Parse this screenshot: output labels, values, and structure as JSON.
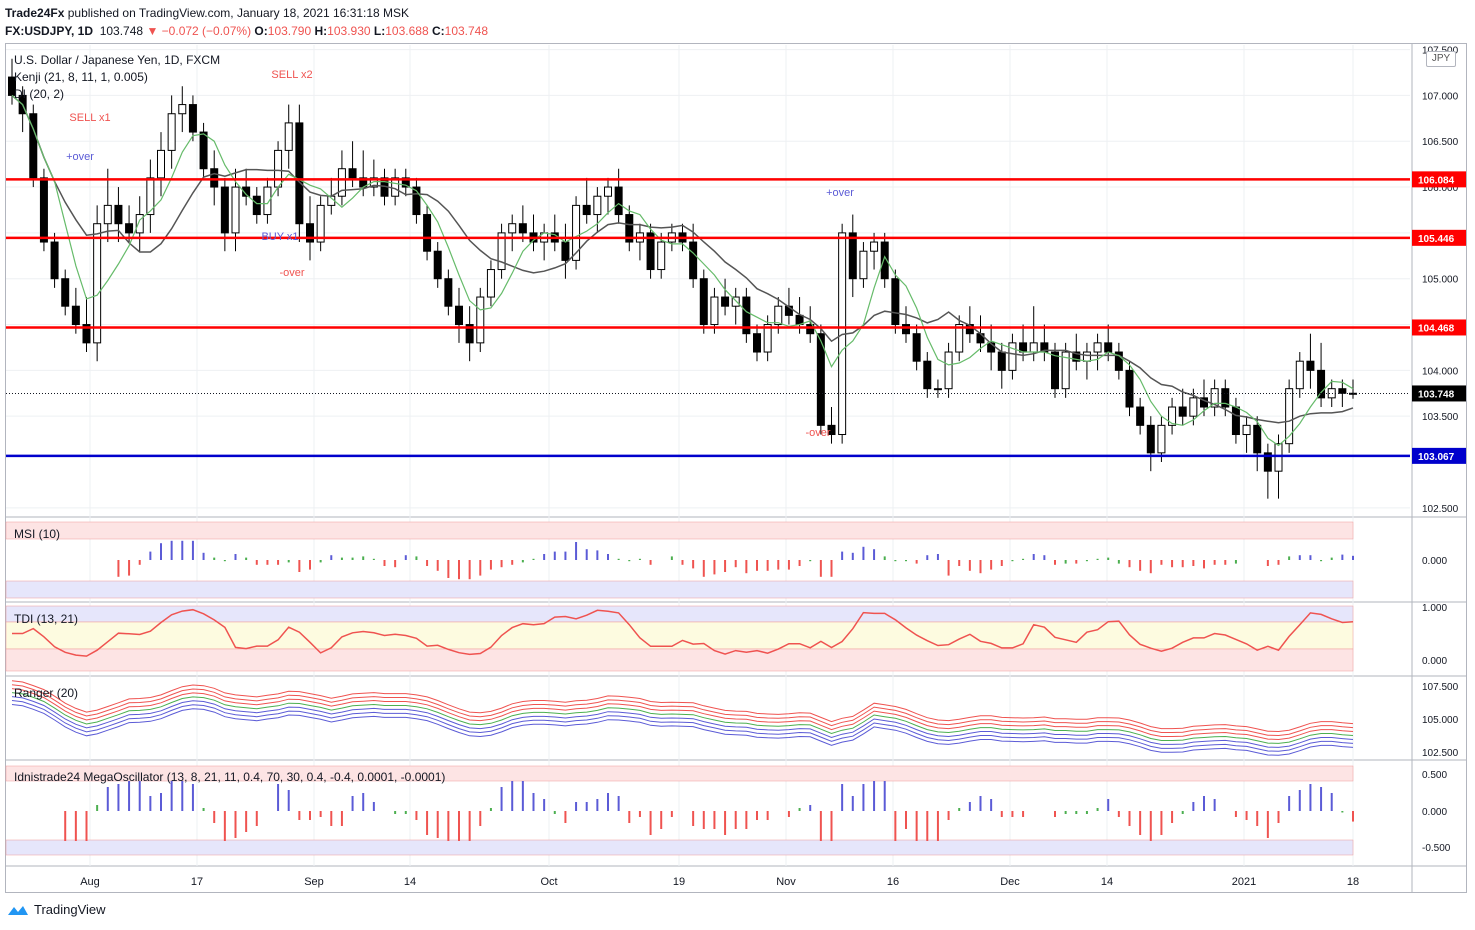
{
  "header": {
    "publisher": "Trade24Fx",
    "published_text": "published on TradingView.com, January 18, 2021 16:31:18 MSK",
    "symbol": "FX:USDJPY, 1D",
    "last": "103.748",
    "change": "−0.072 (−0.07%)",
    "o_label": "O:",
    "o": "103.790",
    "h_label": "H:",
    "h": "103.930",
    "l_label": "L:",
    "l": "103.688",
    "c_label": "C:",
    "c": "103.748"
  },
  "legend": {
    "instrument": "U.S. Dollar / Japanese Yen, 1D, FXCM",
    "kenji": "Kenji (21, 8, 11, 1, 0.005)",
    "di": "DI (20, 2)",
    "msi": "MSI (10)",
    "tdi": "TDI (13, 21)",
    "ranger": "Ranger (20)",
    "mega": "Idnistrade24 MegaOscillator (13, 8, 21, 11, 0.4, 70, 30, 0.4, -0.4, 0.0001, -0.0001)"
  },
  "currency_label": "JPY",
  "footer": {
    "brand": "TradingView"
  },
  "colors": {
    "up": "#ffffff",
    "down": "#000000",
    "level_red": "#ff0000",
    "level_blue": "#0000cc",
    "sell": "#ef5350",
    "buy": "#5b5bd6",
    "green": "#4caf50"
  },
  "chart_data": {
    "type": "candlestick",
    "x_ticks": [
      "Aug",
      "17",
      "Sep",
      "14",
      "Oct",
      "19",
      "Nov",
      "16",
      "Dec",
      "14",
      "2021",
      "18"
    ],
    "price_axis": [
      "107.500",
      "107.000",
      "106.500",
      "106.000",
      "105.500",
      "105.000",
      "104.500",
      "104.000",
      "103.500",
      "102.500"
    ],
    "ylim": [
      102.4,
      107.55
    ],
    "levels": [
      {
        "value": 106.084,
        "label": "106.084",
        "color": "red"
      },
      {
        "value": 105.446,
        "label": "105.446",
        "color": "red"
      },
      {
        "value": 104.468,
        "label": "104.468",
        "color": "red"
      },
      {
        "value": 103.067,
        "label": "103.067",
        "color": "blue"
      }
    ],
    "last_price": {
      "value": 103.748,
      "label": "103.748"
    },
    "ohlc": [
      [
        107.2,
        107.4,
        106.9,
        107.0
      ],
      [
        107.0,
        107.1,
        106.6,
        106.8
      ],
      [
        106.8,
        106.9,
        106.0,
        106.1
      ],
      [
        106.1,
        106.2,
        105.3,
        105.4
      ],
      [
        105.4,
        105.5,
        104.9,
        105.0
      ],
      [
        105.0,
        105.1,
        104.6,
        104.7
      ],
      [
        104.7,
        104.9,
        104.4,
        104.5
      ],
      [
        104.5,
        104.8,
        104.2,
        104.3
      ],
      [
        104.3,
        105.8,
        104.1,
        105.6
      ],
      [
        105.6,
        106.2,
        105.4,
        105.8
      ],
      [
        105.8,
        106.0,
        105.4,
        105.6
      ],
      [
        105.6,
        105.8,
        105.4,
        105.5
      ],
      [
        105.5,
        105.9,
        105.3,
        105.7
      ],
      [
        105.7,
        106.3,
        105.5,
        106.1
      ],
      [
        106.1,
        106.6,
        105.9,
        106.4
      ],
      [
        106.4,
        107.0,
        106.2,
        106.8
      ],
      [
        106.8,
        107.1,
        106.6,
        106.9
      ],
      [
        106.9,
        107.0,
        106.5,
        106.6
      ],
      [
        106.6,
        106.7,
        106.1,
        106.2
      ],
      [
        106.2,
        106.4,
        105.8,
        106.0
      ],
      [
        106.0,
        106.1,
        105.3,
        105.5
      ],
      [
        105.5,
        106.2,
        105.3,
        106.0
      ],
      [
        106.0,
        106.2,
        105.8,
        105.9
      ],
      [
        105.9,
        106.0,
        105.6,
        105.7
      ],
      [
        105.7,
        106.1,
        105.6,
        106.0
      ],
      [
        106.0,
        106.5,
        105.9,
        106.4
      ],
      [
        106.4,
        106.9,
        106.2,
        106.7
      ],
      [
        106.7,
        106.9,
        105.4,
        105.6
      ],
      [
        105.6,
        105.9,
        105.2,
        105.4
      ],
      [
        105.4,
        105.9,
        105.3,
        105.8
      ],
      [
        105.8,
        106.1,
        105.7,
        105.9
      ],
      [
        105.9,
        106.4,
        105.8,
        106.2
      ],
      [
        106.2,
        106.5,
        106.0,
        106.1
      ],
      [
        106.1,
        106.4,
        105.9,
        106.0
      ],
      [
        106.0,
        106.3,
        105.9,
        106.1
      ],
      [
        106.1,
        106.2,
        105.8,
        105.9
      ],
      [
        105.9,
        106.2,
        105.8,
        106.1
      ],
      [
        106.1,
        106.2,
        105.9,
        106.0
      ],
      [
        106.0,
        106.1,
        105.6,
        105.7
      ],
      [
        105.7,
        105.8,
        105.2,
        105.3
      ],
      [
        105.3,
        105.4,
        104.9,
        105.0
      ],
      [
        105.0,
        105.1,
        104.6,
        104.7
      ],
      [
        104.7,
        104.9,
        104.3,
        104.5
      ],
      [
        104.5,
        104.7,
        104.1,
        104.3
      ],
      [
        104.3,
        104.9,
        104.2,
        104.8
      ],
      [
        104.8,
        105.2,
        104.7,
        105.1
      ],
      [
        105.1,
        105.6,
        105.0,
        105.5
      ],
      [
        105.5,
        105.7,
        105.3,
        105.6
      ],
      [
        105.6,
        105.8,
        105.4,
        105.5
      ],
      [
        105.5,
        105.7,
        105.3,
        105.4
      ],
      [
        105.4,
        105.6,
        105.2,
        105.5
      ],
      [
        105.5,
        105.7,
        105.3,
        105.4
      ],
      [
        105.4,
        105.6,
        105.0,
        105.2
      ],
      [
        105.2,
        105.9,
        105.1,
        105.8
      ],
      [
        105.8,
        106.1,
        105.6,
        105.7
      ],
      [
        105.7,
        106.0,
        105.5,
        105.9
      ],
      [
        105.9,
        106.1,
        105.7,
        106.0
      ],
      [
        106.0,
        106.2,
        105.6,
        105.7
      ],
      [
        105.7,
        105.8,
        105.3,
        105.4
      ],
      [
        105.4,
        105.6,
        105.2,
        105.5
      ],
      [
        105.5,
        105.6,
        105.0,
        105.1
      ],
      [
        105.1,
        105.5,
        105.0,
        105.4
      ],
      [
        105.4,
        105.6,
        105.3,
        105.5
      ],
      [
        105.5,
        105.6,
        105.3,
        105.4
      ],
      [
        105.4,
        105.6,
        104.9,
        105.0
      ],
      [
        105.0,
        105.1,
        104.4,
        104.5
      ],
      [
        104.5,
        104.9,
        104.4,
        104.8
      ],
      [
        104.8,
        105.0,
        104.6,
        104.7
      ],
      [
        104.7,
        104.9,
        104.5,
        104.8
      ],
      [
        104.8,
        104.9,
        104.3,
        104.4
      ],
      [
        104.4,
        104.5,
        104.1,
        104.2
      ],
      [
        104.2,
        104.6,
        104.1,
        104.5
      ],
      [
        104.5,
        104.8,
        104.4,
        104.7
      ],
      [
        104.7,
        104.9,
        104.5,
        104.6
      ],
      [
        104.6,
        104.8,
        104.4,
        104.5
      ],
      [
        104.5,
        104.7,
        104.3,
        104.4
      ],
      [
        104.4,
        104.5,
        103.3,
        103.4
      ],
      [
        103.4,
        103.6,
        103.2,
        103.3
      ],
      [
        103.3,
        105.6,
        103.2,
        105.5
      ],
      [
        105.5,
        105.7,
        104.8,
        105.0
      ],
      [
        105.0,
        105.4,
        104.9,
        105.3
      ],
      [
        105.3,
        105.5,
        105.1,
        105.4
      ],
      [
        105.4,
        105.5,
        104.9,
        105.0
      ],
      [
        105.0,
        105.1,
        104.4,
        104.5
      ],
      [
        104.5,
        104.7,
        104.3,
        104.4
      ],
      [
        104.4,
        104.5,
        104.0,
        104.1
      ],
      [
        104.1,
        104.2,
        103.7,
        103.8
      ],
      [
        103.8,
        103.9,
        103.7,
        103.8
      ],
      [
        103.8,
        104.3,
        103.7,
        104.2
      ],
      [
        104.2,
        104.6,
        104.1,
        104.5
      ],
      [
        104.5,
        104.7,
        104.3,
        104.4
      ],
      [
        104.4,
        104.6,
        104.2,
        104.3
      ],
      [
        104.3,
        104.5,
        104.0,
        104.2
      ],
      [
        104.2,
        104.3,
        103.8,
        104.0
      ],
      [
        104.0,
        104.4,
        103.9,
        104.3
      ],
      [
        104.3,
        104.5,
        104.1,
        104.2
      ],
      [
        104.2,
        104.7,
        104.1,
        104.3
      ],
      [
        104.3,
        104.5,
        104.1,
        104.2
      ],
      [
        104.2,
        104.3,
        103.7,
        103.8
      ],
      [
        103.8,
        104.3,
        103.7,
        104.2
      ],
      [
        104.2,
        104.4,
        104.0,
        104.1
      ],
      [
        104.1,
        104.3,
        103.9,
        104.2
      ],
      [
        104.2,
        104.4,
        104.0,
        104.3
      ],
      [
        104.3,
        104.5,
        104.1,
        104.2
      ],
      [
        104.2,
        104.3,
        103.9,
        104.0
      ],
      [
        104.0,
        104.1,
        103.5,
        103.6
      ],
      [
        103.6,
        103.7,
        103.3,
        103.4
      ],
      [
        103.4,
        103.5,
        102.9,
        103.1
      ],
      [
        103.1,
        103.5,
        103.0,
        103.4
      ],
      [
        103.4,
        103.7,
        103.3,
        103.6
      ],
      [
        103.6,
        103.8,
        103.4,
        103.5
      ],
      [
        103.5,
        103.8,
        103.4,
        103.7
      ],
      [
        103.7,
        103.9,
        103.5,
        103.6
      ],
      [
        103.6,
        103.9,
        103.5,
        103.8
      ],
      [
        103.8,
        103.9,
        103.5,
        103.6
      ],
      [
        103.6,
        103.7,
        103.2,
        103.3
      ],
      [
        103.3,
        103.5,
        103.1,
        103.4
      ],
      [
        103.4,
        103.5,
        102.9,
        103.1
      ],
      [
        103.1,
        103.2,
        102.6,
        102.9
      ],
      [
        102.9,
        103.3,
        102.6,
        103.2
      ],
      [
        103.2,
        103.9,
        103.1,
        103.8
      ],
      [
        103.8,
        104.2,
        103.7,
        104.1
      ],
      [
        104.1,
        104.4,
        103.8,
        104.0
      ],
      [
        104.0,
        104.3,
        103.6,
        103.7
      ],
      [
        103.7,
        103.9,
        103.6,
        103.8
      ],
      [
        103.8,
        103.9,
        103.6,
        103.75
      ],
      [
        103.75,
        103.9,
        103.69,
        103.748
      ]
    ],
    "annotations": [
      {
        "text": "SELL x1",
        "type": "sell"
      },
      {
        "text": "+over",
        "type": "buy"
      },
      {
        "text": "SELL x2",
        "type": "sell"
      },
      {
        "text": "BUY x1",
        "type": "buy"
      },
      {
        "text": "-over",
        "type": "sell"
      },
      {
        "text": "+over",
        "type": "buy"
      },
      {
        "text": "-over",
        "type": "sell"
      }
    ],
    "sub_axes": {
      "msi": [
        "0.000"
      ],
      "tdi": [
        "1.000",
        "0.000"
      ],
      "ranger": [
        "107.500",
        "105.000",
        "102.500"
      ],
      "mega": [
        "0.500",
        "0.000",
        "-0.500"
      ]
    }
  }
}
